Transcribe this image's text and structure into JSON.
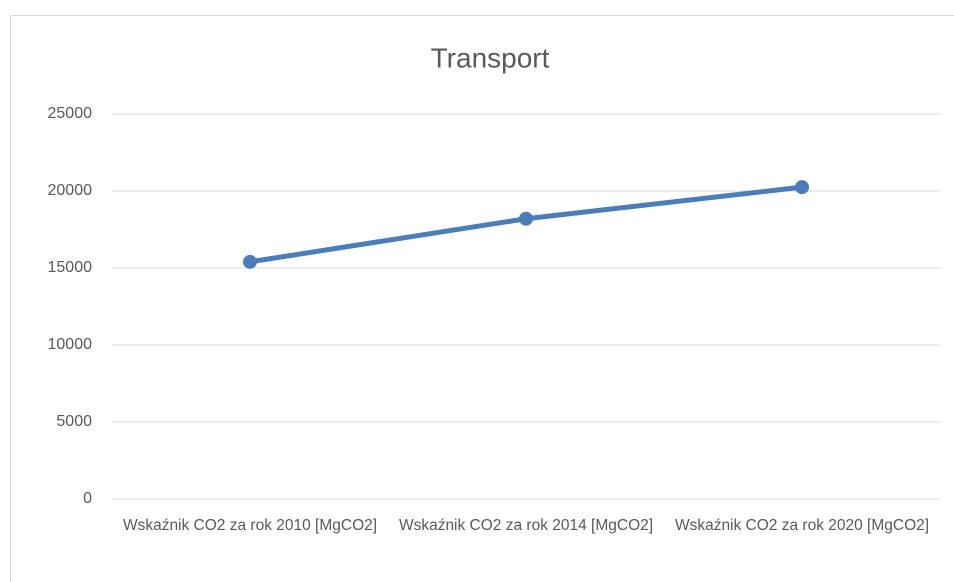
{
  "chart_data": {
    "type": "line",
    "title": "Transport",
    "categories": [
      "Wskaźnik CO2 za rok 2010 [MgCO2]",
      "Wskaźnik CO2 za rok 2014 [MgCO2]",
      "Wskaźnik CO2 za rok 2020 [MgCO2]"
    ],
    "series": [
      {
        "name": "Transport",
        "color": "#4a7ebb",
        "values": [
          15400,
          18200,
          20250
        ]
      }
    ],
    "ylim": [
      0,
      25000
    ],
    "yticks": [
      0,
      5000,
      10000,
      15000,
      20000,
      25000
    ],
    "grid": true
  }
}
